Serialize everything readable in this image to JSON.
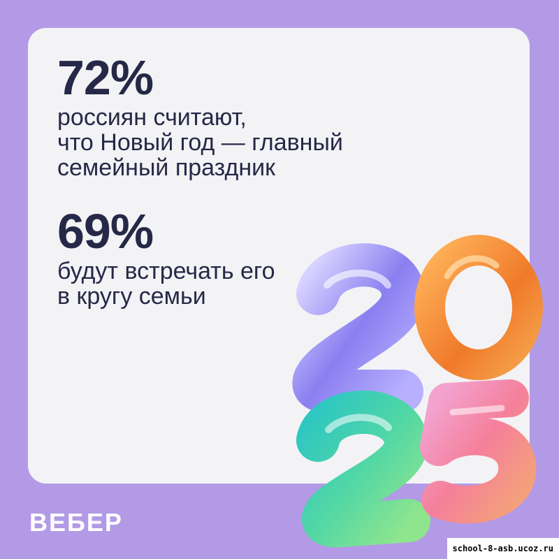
{
  "stats": [
    {
      "value": "72%",
      "caption": "россиян считают,\nчто Новый год — главный\nсемейный праздник"
    },
    {
      "value": "69%",
      "caption": "будут встречать его\nв кругу семьи"
    }
  ],
  "decor": {
    "icon": "year-2025-3d-numerals-icon",
    "colors": {
      "two_top": "#8a7ff0",
      "zero": "#f08a3a",
      "two_bottom": "#3fcfa9",
      "five": "#f08aa6"
    }
  },
  "brand": {
    "logo_text": "ВЕБЕР"
  },
  "watermark": {
    "text": "school-8-asb.ucoz.ru"
  },
  "colors": {
    "background": "#b39ae6",
    "card": "#f3f3f6",
    "text": "#262847"
  }
}
